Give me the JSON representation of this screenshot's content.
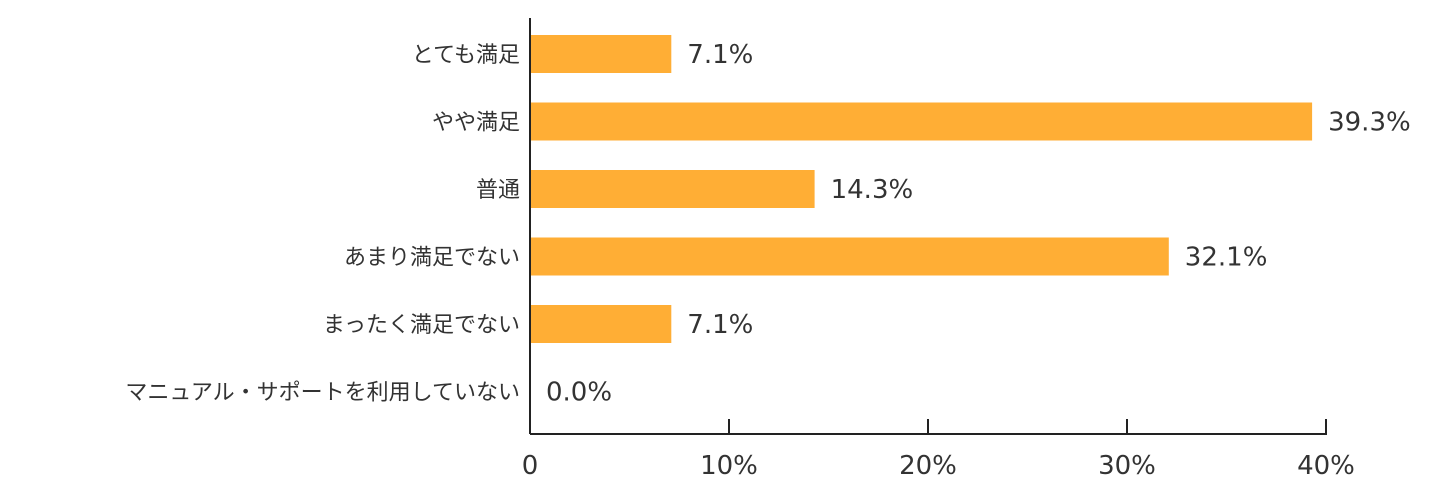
{
  "chart_data": {
    "type": "bar",
    "orientation": "horizontal",
    "categories": [
      "とても満足",
      "やや満足",
      "普通",
      "あまり満足でない",
      "まったく満足でない",
      "マニュアル・サポートを利用していない"
    ],
    "values": [
      7.1,
      39.3,
      14.3,
      32.1,
      7.1,
      0.0
    ],
    "data_labels": [
      "7.1%",
      "39.3%",
      "14.3%",
      "32.1%",
      "7.1%",
      "0.0%"
    ],
    "xlim": [
      0,
      40
    ],
    "x_ticks": [
      0,
      10,
      20,
      30,
      40
    ],
    "x_tick_labels": [
      "0",
      "10%",
      "20%",
      "30%",
      "40%"
    ],
    "title": "",
    "xlabel": "",
    "ylabel": "",
    "grid": false,
    "legend": "none",
    "colors": {
      "bar": "#FFAE35",
      "axis": "#222222",
      "text": "#333333"
    }
  }
}
